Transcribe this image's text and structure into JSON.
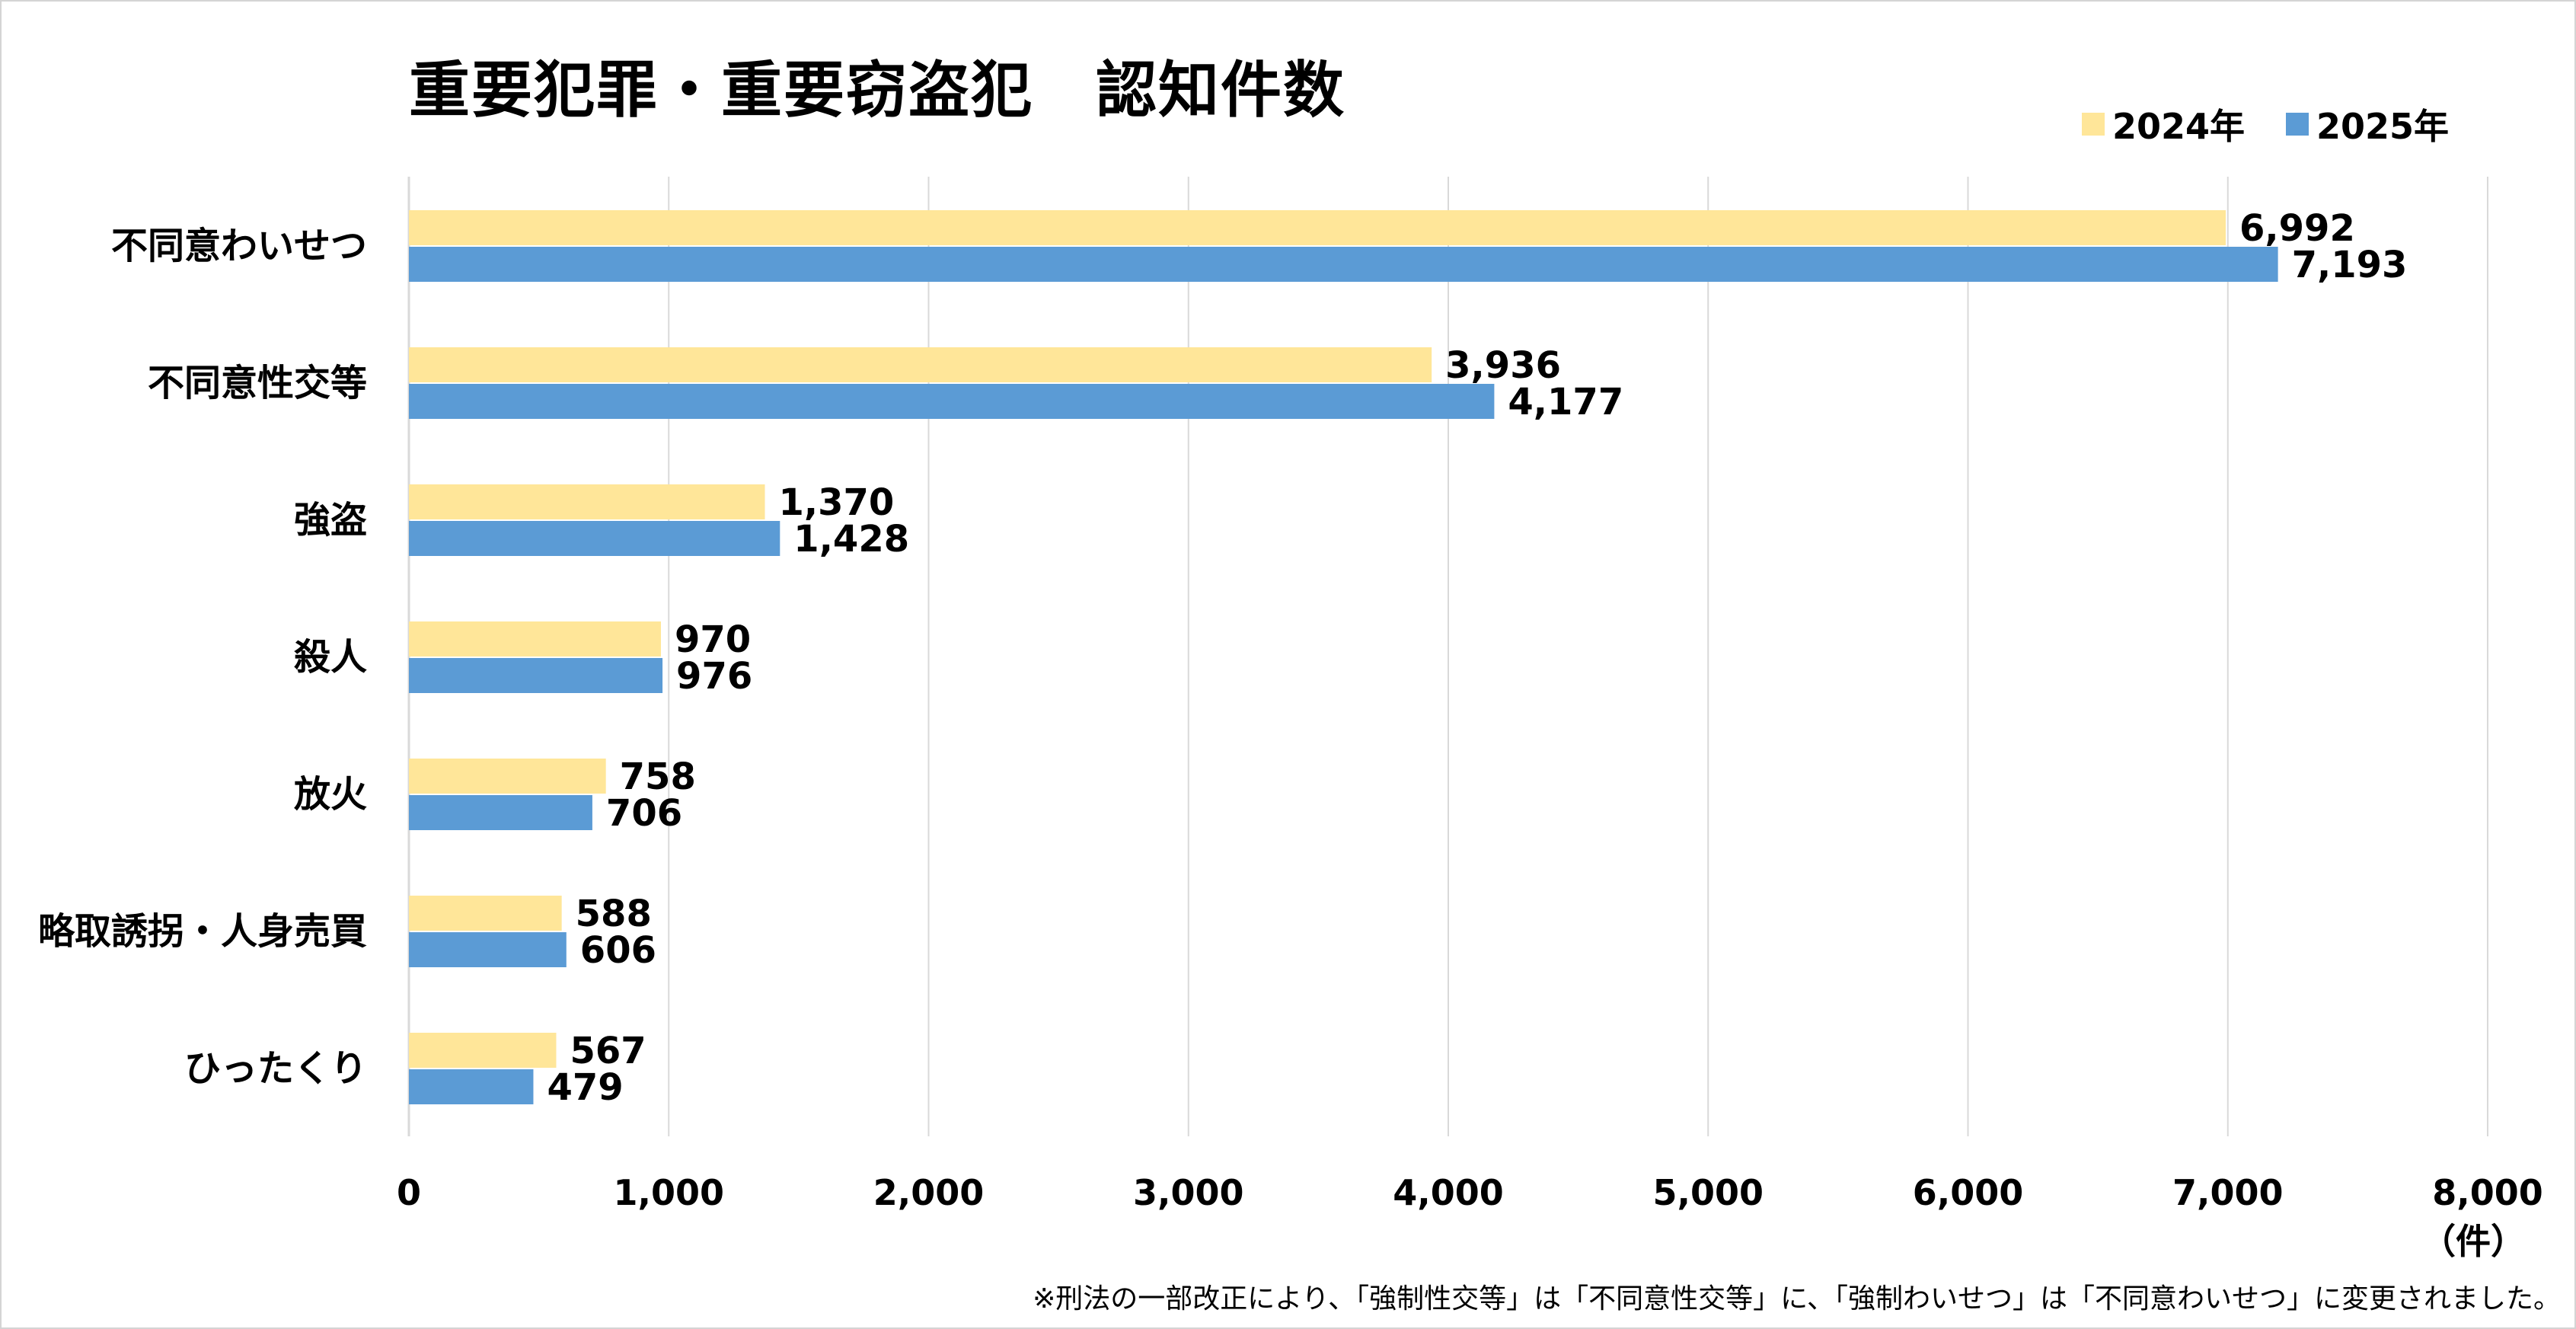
{
  "chart_data": {
    "type": "bar",
    "orientation": "horizontal",
    "title": "重要犯罪・重要窃盗犯　認知件数",
    "categories": [
      "不同意わいせつ",
      "不同意性交等",
      "強盗",
      "殺人",
      "放火",
      "略取誘拐・人身売買",
      "ひったくり"
    ],
    "series": [
      {
        "name": "2024年",
        "color": "#FFE699",
        "values": [
          6992,
          3936,
          1370,
          970,
          758,
          588,
          567
        ],
        "labels": [
          "6,992",
          "3,936",
          "1,370",
          "970",
          "758",
          "588",
          "567"
        ]
      },
      {
        "name": "2025年",
        "color": "#5B9BD5",
        "values": [
          7193,
          4177,
          1428,
          976,
          706,
          606,
          479
        ],
        "labels": [
          "7,193",
          "4,177",
          "1,428",
          "976",
          "706",
          "606",
          "479"
        ]
      }
    ],
    "xlim": [
      0,
      8000
    ],
    "xticks": [
      0,
      1000,
      2000,
      3000,
      4000,
      5000,
      6000,
      7000,
      8000
    ],
    "xtick_labels": [
      "0",
      "1,000",
      "2,000",
      "3,000",
      "4,000",
      "5,000",
      "6,000",
      "7,000",
      "8,000"
    ],
    "xlabel": "（件）",
    "ylabel": "",
    "grid": true,
    "legend_position": "top-right",
    "gridline_color": "#D9D9D9"
  },
  "footnote": "※刑法の一部改正により、「強制性交等」は「不同意性交等」に、「強制わいせつ」は「不同意わいせつ」に変更されました。"
}
